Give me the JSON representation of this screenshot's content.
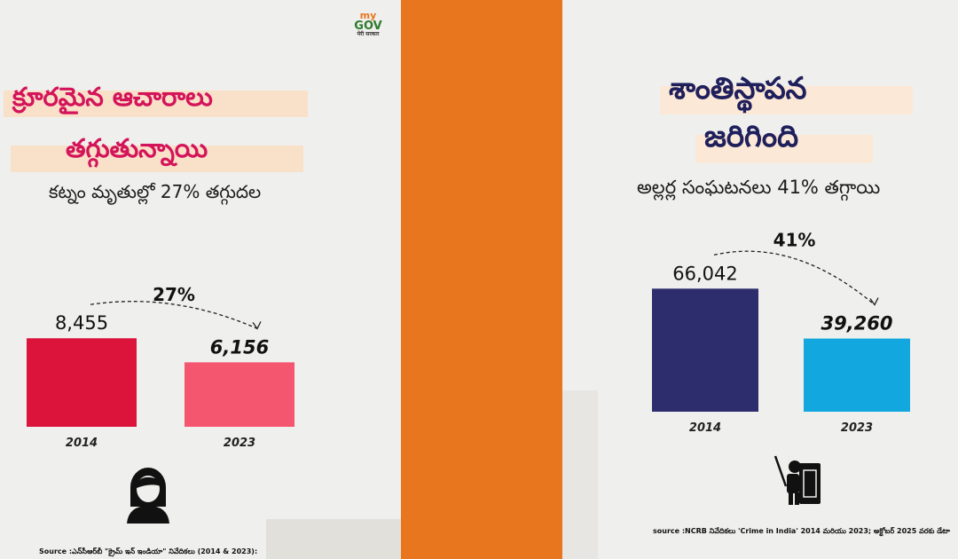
{
  "colors": {
    "divider": "#e8761e",
    "left_bar_2014": "#dc143c",
    "left_bar_2023": "#f4566f",
    "right_bar_2014": "#2d2d6e",
    "right_bar_2023": "#12a7de",
    "title_left": "#d4145a",
    "title_right": "#1f1f5c",
    "highlight_left": "#f9e0c9",
    "highlight_right": "#fbe8d6"
  },
  "logo": {
    "line1": "my",
    "line2": "GOV",
    "line3": "मेरी सरकार"
  },
  "left": {
    "title_line1": "క్రూరమైన ఆచారాలు",
    "title_line2": "తగ్గుతున్నాయి",
    "subtitle": "కట్నం మృతుల్లో 27% తగ్గుదల",
    "icon": "woman-avatar-icon",
    "source": "Source :ఎన్‌సీఆర్‌బీ \"క్రైమ్ ఇన్ ఇండియా\" నివేదికలు (2014 & 2023):"
  },
  "right": {
    "title_line1": "శాంతిస్థాపన",
    "title_line2": "జరిగింది",
    "subtitle": "అల్లర్ల సంఘటనలు 41% తగ్గాయి",
    "icon": "riot-police-shield-icon",
    "source": "source :NCRB నివేదికలు 'Crime in India' 2014 మరియు 2023; అక్టోబర్ 2025 వరకు డేటా"
  },
  "chart_data": [
    {
      "type": "bar",
      "categories": [
        "2014",
        "2023"
      ],
      "values": [
        8455,
        6156
      ],
      "value_labels": [
        "8,455",
        "6,156"
      ],
      "change_label": "27%",
      "ylim": [
        0,
        10000
      ],
      "grid": false
    },
    {
      "type": "bar",
      "categories": [
        "2014",
        "2023"
      ],
      "values": [
        66042,
        39260
      ],
      "value_labels": [
        "66,042",
        "39,260"
      ],
      "change_label": "41%",
      "ylim": [
        0,
        100000
      ],
      "grid": false
    }
  ]
}
